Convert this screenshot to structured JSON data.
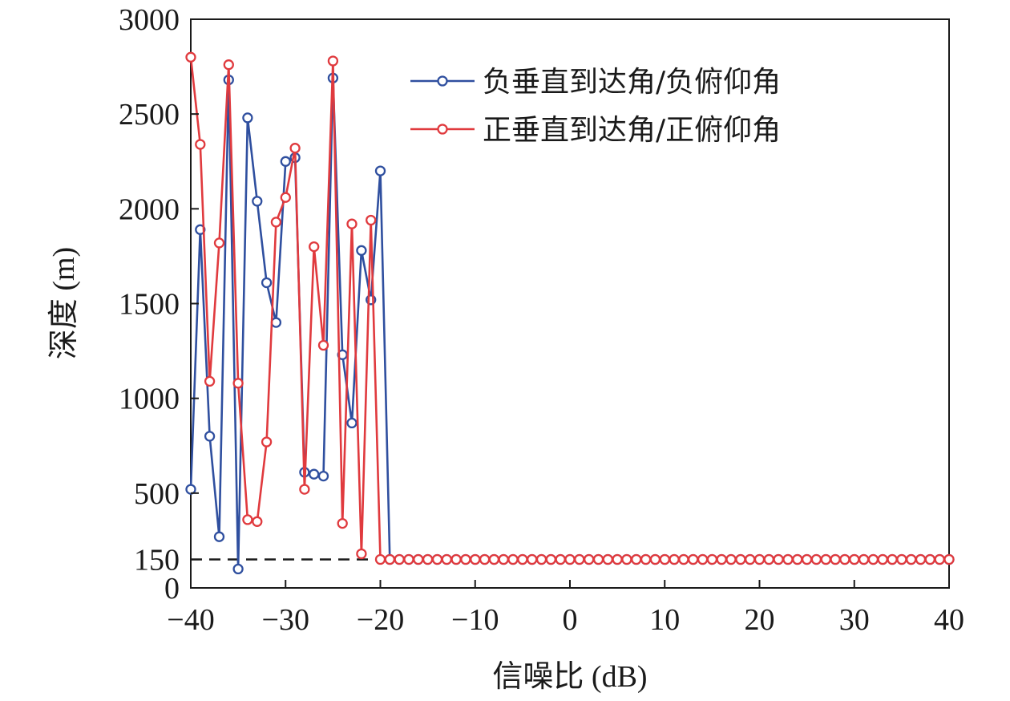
{
  "chart_data": {
    "type": "line",
    "xlabel": "信噪比 (dB)",
    "ylabel": "深度 (m)",
    "xlim": [
      -40,
      40
    ],
    "ylim": [
      0,
      3000
    ],
    "xticks": [
      -40,
      -30,
      -20,
      -10,
      0,
      10,
      20,
      30,
      40
    ],
    "xtick_labels": [
      "−40",
      "−30",
      "−20",
      "−10",
      "0",
      "10",
      "20",
      "30",
      "40"
    ],
    "yticks": [
      0,
      150,
      500,
      1000,
      1500,
      2000,
      2500,
      3000
    ],
    "ytick_labels": [
      "0",
      "150",
      "500",
      "1000",
      "1500",
      "2000",
      "2500",
      "3000"
    ],
    "grid": false,
    "legend_position": "top-right",
    "reference_line": {
      "y": 150,
      "x_range": [
        -40,
        -20
      ],
      "style": "dashed",
      "color": "#1a1a1a"
    },
    "series": [
      {
        "name": "负垂直到达角/负俯仰角",
        "color": "#2f4f9f",
        "marker": "circle",
        "x": [
          -40,
          -39,
          -38,
          -37,
          -36,
          -35,
          -34,
          -33,
          -32,
          -31,
          -30,
          -29,
          -28,
          -27,
          -26,
          -25,
          -24,
          -23,
          -22,
          -21,
          -20,
          -19,
          -18,
          -17,
          -16,
          -15,
          -14,
          -13,
          -12,
          -11,
          -10,
          -9,
          -8,
          -7,
          -6,
          -5,
          -4,
          -3,
          -2,
          -1,
          0,
          1,
          2,
          3,
          4,
          5,
          6,
          7,
          8,
          9,
          10,
          11,
          12,
          13,
          14,
          15,
          16,
          17,
          18,
          19,
          20,
          21,
          22,
          23,
          24,
          25,
          26,
          27,
          28,
          29,
          30,
          31,
          32,
          33,
          34,
          35,
          36,
          37,
          38,
          39,
          40
        ],
        "y": [
          520,
          1890,
          800,
          270,
          2680,
          100,
          2480,
          2040,
          1610,
          1400,
          2250,
          2270,
          610,
          600,
          590,
          2690,
          1230,
          870,
          1780,
          1520,
          2200,
          150,
          150,
          150,
          150,
          150,
          150,
          150,
          150,
          150,
          150,
          150,
          150,
          150,
          150,
          150,
          150,
          150,
          150,
          150,
          150,
          150,
          150,
          150,
          150,
          150,
          150,
          150,
          150,
          150,
          150,
          150,
          150,
          150,
          150,
          150,
          150,
          150,
          150,
          150,
          150,
          150,
          150,
          150,
          150,
          150,
          150,
          150,
          150,
          150,
          150,
          150,
          150,
          150,
          150,
          150,
          150,
          150,
          150,
          150,
          150
        ]
      },
      {
        "name": "正垂直到达角/正俯仰角",
        "color": "#e03a3e",
        "marker": "circle",
        "x": [
          -40,
          -39,
          -38,
          -37,
          -36,
          -35,
          -34,
          -33,
          -32,
          -31,
          -30,
          -29,
          -28,
          -27,
          -26,
          -25,
          -24,
          -23,
          -22,
          -21,
          -20,
          -19,
          -18,
          -17,
          -16,
          -15,
          -14,
          -13,
          -12,
          -11,
          -10,
          -9,
          -8,
          -7,
          -6,
          -5,
          -4,
          -3,
          -2,
          -1,
          0,
          1,
          2,
          3,
          4,
          5,
          6,
          7,
          8,
          9,
          10,
          11,
          12,
          13,
          14,
          15,
          16,
          17,
          18,
          19,
          20,
          21,
          22,
          23,
          24,
          25,
          26,
          27,
          28,
          29,
          30,
          31,
          32,
          33,
          34,
          35,
          36,
          37,
          38,
          39,
          40
        ],
        "y": [
          2800,
          2340,
          1090,
          1820,
          2760,
          1080,
          360,
          350,
          770,
          1930,
          2060,
          2320,
          520,
          1800,
          1280,
          2780,
          340,
          1920,
          180,
          1940,
          150,
          150,
          150,
          150,
          150,
          150,
          150,
          150,
          150,
          150,
          150,
          150,
          150,
          150,
          150,
          150,
          150,
          150,
          150,
          150,
          150,
          150,
          150,
          150,
          150,
          150,
          150,
          150,
          150,
          150,
          150,
          150,
          150,
          150,
          150,
          150,
          150,
          150,
          150,
          150,
          150,
          150,
          150,
          150,
          150,
          150,
          150,
          150,
          150,
          150,
          150,
          150,
          150,
          150,
          150,
          150,
          150,
          150,
          150,
          150,
          150
        ]
      }
    ]
  }
}
